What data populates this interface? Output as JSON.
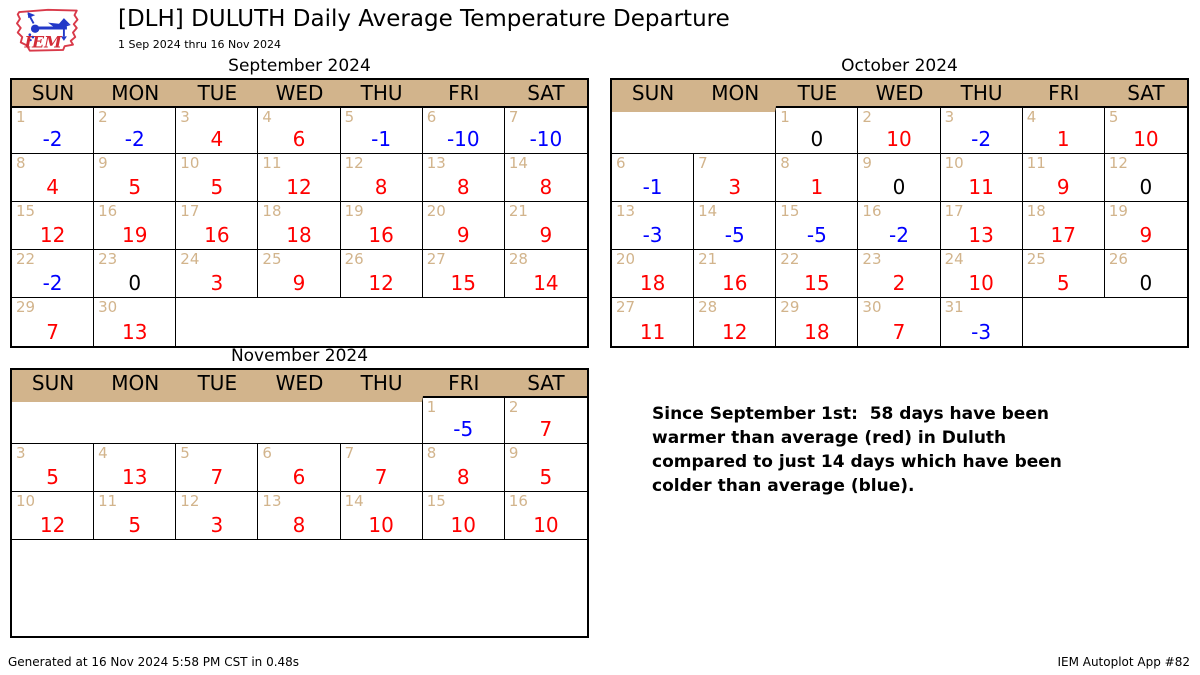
{
  "header": {
    "title": "[DLH] DULUTH Daily Average Temperature Departure",
    "subtitle": "1 Sep 2024 thru 16 Nov 2024",
    "logo_label": "IEM"
  },
  "colors": {
    "header_bg": "#d2b48c",
    "day_number": "#d2b48c",
    "warmer": "#ff0000",
    "colder": "#0000ff",
    "zero": "#000000",
    "logo_red": "#d93a4a",
    "logo_blue": "#2238c8"
  },
  "chart_data": {
    "type": "heatmap",
    "subtype": "calendar",
    "title": "[DLH] DULUTH Daily Average Temperature Departure",
    "subtitle": "1 Sep 2024 thru 16 Nov 2024",
    "value_meaning": "daily average temperature departure",
    "color_rule": {
      "positive": "red (warmer than average)",
      "negative": "blue (colder than average)",
      "zero": "black"
    },
    "weekday_headers": [
      "SUN",
      "MON",
      "TUE",
      "WED",
      "THU",
      "FRI",
      "SAT"
    ],
    "total_rows_per_month": 5,
    "months": [
      {
        "name": "September 2024",
        "first_weekday": 0,
        "days": [
          [
            1,
            -2
          ],
          [
            2,
            -2
          ],
          [
            3,
            4
          ],
          [
            4,
            6
          ],
          [
            5,
            -1
          ],
          [
            6,
            -10
          ],
          [
            7,
            -10
          ],
          [
            8,
            4
          ],
          [
            9,
            5
          ],
          [
            10,
            5
          ],
          [
            11,
            12
          ],
          [
            12,
            8
          ],
          [
            13,
            8
          ],
          [
            14,
            8
          ],
          [
            15,
            12
          ],
          [
            16,
            19
          ],
          [
            17,
            16
          ],
          [
            18,
            18
          ],
          [
            19,
            16
          ],
          [
            20,
            9
          ],
          [
            21,
            9
          ],
          [
            22,
            -2
          ],
          [
            23,
            0
          ],
          [
            24,
            3
          ],
          [
            25,
            9
          ],
          [
            26,
            12
          ],
          [
            27,
            15
          ],
          [
            28,
            14
          ],
          [
            29,
            7
          ],
          [
            30,
            13
          ]
        ]
      },
      {
        "name": "October 2024",
        "first_weekday": 2,
        "days": [
          [
            1,
            0
          ],
          [
            2,
            10
          ],
          [
            3,
            -2
          ],
          [
            4,
            1
          ],
          [
            5,
            10
          ],
          [
            6,
            -1
          ],
          [
            7,
            3
          ],
          [
            8,
            1
          ],
          [
            9,
            0
          ],
          [
            10,
            11
          ],
          [
            11,
            9
          ],
          [
            12,
            0
          ],
          [
            13,
            -3
          ],
          [
            14,
            -5
          ],
          [
            15,
            -5
          ],
          [
            16,
            -2
          ],
          [
            17,
            13
          ],
          [
            18,
            17
          ],
          [
            19,
            9
          ],
          [
            20,
            18
          ],
          [
            21,
            16
          ],
          [
            22,
            15
          ],
          [
            23,
            2
          ],
          [
            24,
            10
          ],
          [
            25,
            5
          ],
          [
            26,
            0
          ],
          [
            27,
            11
          ],
          [
            28,
            12
          ],
          [
            29,
            18
          ],
          [
            30,
            7
          ],
          [
            31,
            -3
          ]
        ]
      },
      {
        "name": "November 2024",
        "first_weekday": 5,
        "days": [
          [
            1,
            -5
          ],
          [
            2,
            7
          ],
          [
            3,
            5
          ],
          [
            4,
            13
          ],
          [
            5,
            7
          ],
          [
            6,
            6
          ],
          [
            7,
            7
          ],
          [
            8,
            8
          ],
          [
            9,
            5
          ],
          [
            10,
            12
          ],
          [
            11,
            5
          ],
          [
            12,
            3
          ],
          [
            13,
            8
          ],
          [
            14,
            10
          ],
          [
            15,
            10
          ],
          [
            16,
            10
          ]
        ]
      }
    ],
    "annotation": {
      "warmer_days": 58,
      "colder_days": 14,
      "lines": [
        "Since September 1st:  58 days have been",
        "warmer than average (red) in Duluth",
        "compared to just 14 days which have been",
        "colder than average (blue)."
      ]
    }
  },
  "footer": {
    "left": "Generated at 16 Nov 2024 5:58 PM CST in 0.48s",
    "right": "IEM Autoplot App #82"
  }
}
